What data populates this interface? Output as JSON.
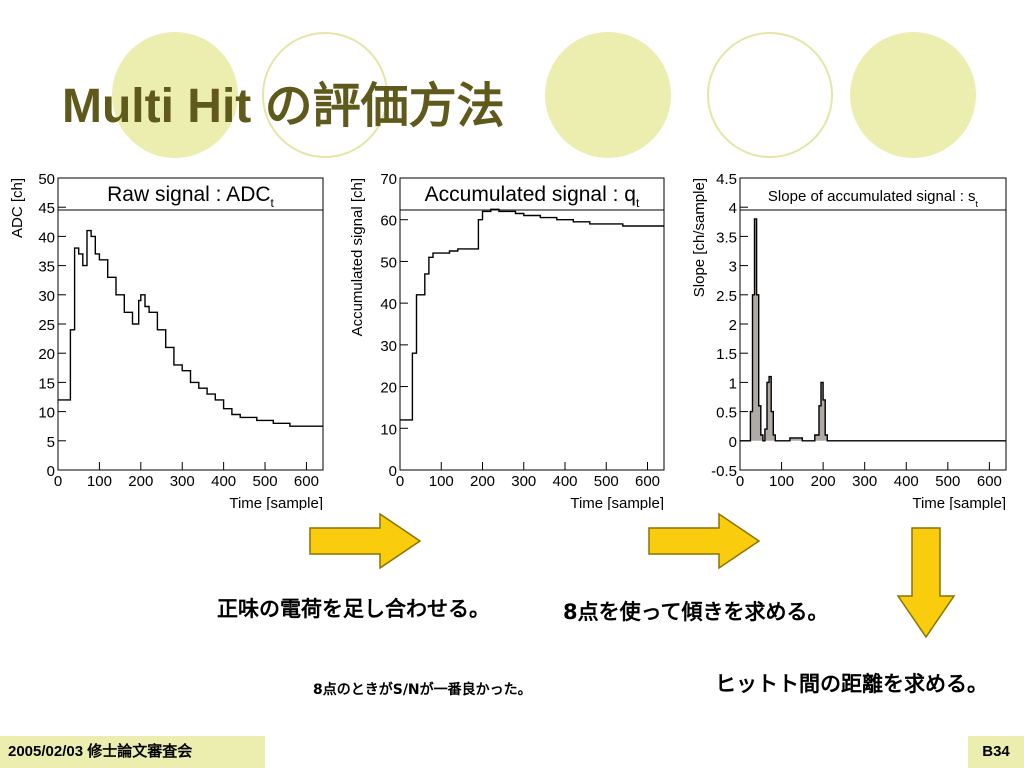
{
  "title": "Multi Hit の評価方法",
  "captions": {
    "sum": "正味の電荷を足し合わせる。",
    "slope": "8点を使って傾きを求める。",
    "best": "8点のときがS/Nが一番良かった。",
    "distance": "ヒットト間の距離を求める。"
  },
  "footer": {
    "date": "2005/02/03 修士論文審査会",
    "page": "B34"
  },
  "colors": {
    "arrow": "#f9cc0d",
    "arrow_border": "#8a7400",
    "theme": "#eceeb0",
    "title": "#5f5a1c"
  },
  "chart_data": [
    {
      "type": "line",
      "title": "Raw signal : ADC",
      "title_sub": "t",
      "xlabel": "Time [sample]",
      "ylabel": "ADC [ch]",
      "xlim": [
        0,
        640
      ],
      "ylim": [
        0,
        50
      ],
      "xticks": [
        0,
        100,
        200,
        300,
        400,
        500,
        600
      ],
      "yticks": [
        0,
        5,
        10,
        15,
        20,
        25,
        30,
        35,
        40,
        45,
        50
      ],
      "series": [
        {
          "x": [
            0,
            20,
            30,
            40,
            50,
            60,
            70,
            80,
            90,
            100,
            120,
            140,
            160,
            180,
            195,
            200,
            210,
            220,
            240,
            260,
            280,
            300,
            320,
            340,
            360,
            380,
            400,
            420,
            440,
            460,
            480,
            500,
            520,
            540,
            560,
            580,
            600,
            620,
            640
          ],
          "values": [
            12,
            12,
            24,
            38,
            37,
            35,
            41,
            40,
            37,
            36,
            33,
            30,
            27,
            25,
            29,
            30,
            28,
            27,
            24,
            21,
            18,
            17,
            15,
            14,
            13,
            12,
            10.5,
            9.5,
            9,
            9,
            8.5,
            8.5,
            8,
            8,
            7.5,
            7.5,
            7.5,
            7.5,
            7.5
          ]
        }
      ]
    },
    {
      "type": "line",
      "title": "Accumulated signal : q",
      "title_sub": "t",
      "xlabel": "Time [sample]",
      "ylabel": "Accumulated signal [ch]",
      "xlim": [
        0,
        640
      ],
      "ylim": [
        0,
        70
      ],
      "xticks": [
        0,
        100,
        200,
        300,
        400,
        500,
        600
      ],
      "yticks": [
        0,
        10,
        20,
        30,
        40,
        50,
        60,
        70
      ],
      "series": [
        {
          "x": [
            0,
            20,
            30,
            40,
            50,
            60,
            70,
            80,
            100,
            120,
            140,
            160,
            180,
            190,
            200,
            220,
            240,
            260,
            280,
            300,
            340,
            380,
            420,
            460,
            500,
            540,
            580,
            620,
            640
          ],
          "values": [
            12,
            12,
            28,
            42,
            42,
            47,
            51,
            52,
            52,
            52.5,
            53,
            53,
            53,
            60,
            62,
            62.5,
            62,
            62,
            61.5,
            61,
            60.5,
            60,
            59.5,
            59,
            59,
            58.5,
            58.5,
            58.5,
            58.5
          ]
        }
      ]
    },
    {
      "type": "area",
      "title": "Slope of accumulated signal : s",
      "title_sub": "t",
      "xlabel": "Time [sample]",
      "ylabel": "Slope [ch/sample]",
      "xlim": [
        0,
        640
      ],
      "ylim": [
        -0.5,
        4.5
      ],
      "xticks": [
        0,
        100,
        200,
        300,
        400,
        500,
        600
      ],
      "yticks": [
        -0.5,
        0,
        0.5,
        1,
        1.5,
        2,
        2.5,
        3,
        3.5,
        4,
        4.5
      ],
      "series": [
        {
          "x": [
            0,
            20,
            25,
            30,
            35,
            40,
            45,
            50,
            55,
            60,
            65,
            70,
            75,
            80,
            85,
            90,
            120,
            150,
            180,
            190,
            195,
            200,
            205,
            210,
            240,
            300,
            400,
            500,
            600,
            640
          ],
          "values": [
            0,
            0,
            0.5,
            2.5,
            3.8,
            2.5,
            0.6,
            0.1,
            0,
            0.2,
            1.0,
            1.1,
            0.5,
            0.1,
            0,
            0,
            0.05,
            0,
            0.1,
            0.6,
            1.0,
            0.7,
            0.1,
            0,
            0,
            0,
            0,
            0,
            0,
            0
          ]
        }
      ]
    }
  ]
}
